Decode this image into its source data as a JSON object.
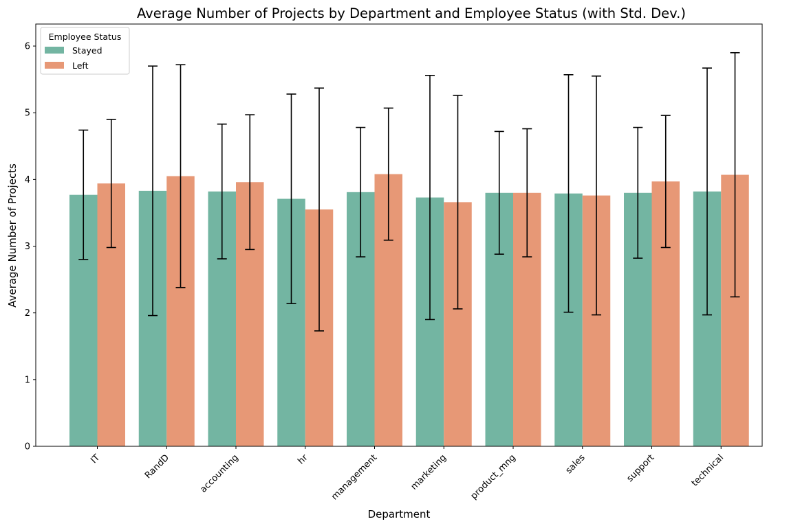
{
  "chart_data": {
    "type": "bar",
    "title": "Average Number of Projects by Department and Employee Status (with Std. Dev.)",
    "xlabel": "Department",
    "ylabel": "Average Number of Projects",
    "ylim": [
      0,
      6.33
    ],
    "yticks": [
      0,
      1,
      2,
      3,
      4,
      5,
      6
    ],
    "grid": false,
    "legend": {
      "title": "Employee Status",
      "placement": "top-left"
    },
    "categories": [
      "IT",
      "RandD",
      "accounting",
      "hr",
      "management",
      "marketing",
      "product_mng",
      "sales",
      "support",
      "technical"
    ],
    "series": [
      {
        "name": "Stayed",
        "color": "#73b5a2",
        "values": [
          3.77,
          3.83,
          3.82,
          3.71,
          3.81,
          3.73,
          3.8,
          3.79,
          3.8,
          3.82
        ],
        "std": [
          0.97,
          1.87,
          1.01,
          1.57,
          0.97,
          1.83,
          0.92,
          1.78,
          0.98,
          1.85
        ]
      },
      {
        "name": "Left",
        "color": "#e79876",
        "values": [
          3.94,
          4.05,
          3.96,
          3.55,
          4.08,
          3.66,
          3.8,
          3.76,
          3.97,
          4.07
        ],
        "std": [
          0.96,
          1.67,
          1.01,
          1.82,
          0.99,
          1.6,
          0.96,
          1.79,
          0.99,
          1.83
        ]
      }
    ]
  }
}
